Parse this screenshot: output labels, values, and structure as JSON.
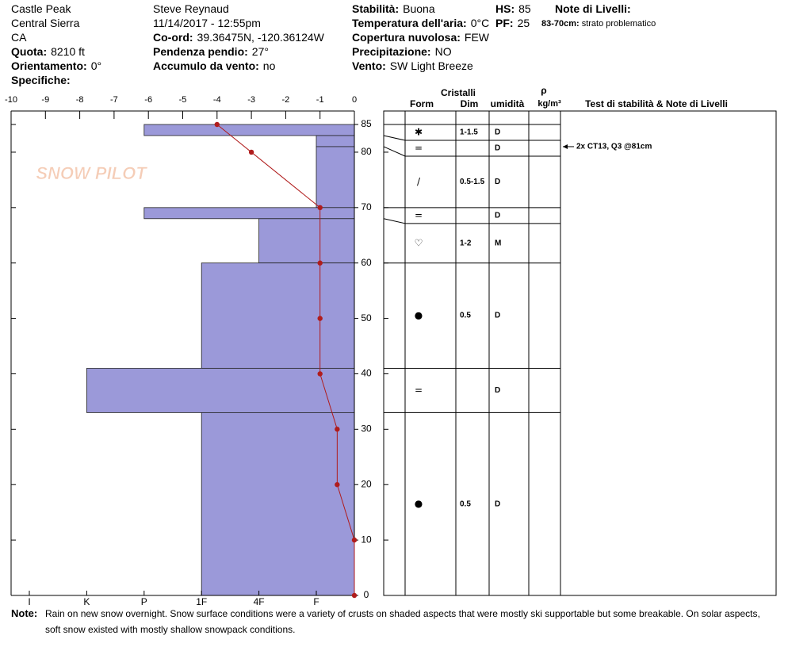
{
  "header": {
    "columns": [
      [
        {
          "text": "Castle Peak"
        },
        {
          "text": "Central Sierra"
        },
        {
          "text": "CA"
        },
        {
          "label": "Quota:",
          "value": "8210 ft"
        },
        {
          "label": "Orientamento:",
          "value": "0°"
        },
        {
          "label": "Specifiche:"
        }
      ],
      [
        {
          "text": "Steve Reynaud"
        },
        {
          "text": "11/14/2017 - 12:55pm"
        },
        {
          "label": "Co-ord:",
          "value": "39.36475N, -120.36124W"
        },
        {
          "label": "Pendenza pendio:",
          "value": "27°"
        },
        {
          "label": "Accumulo da vento:",
          "value": "no"
        }
      ],
      [
        {
          "label": "Stabilità:",
          "value": "Buona"
        },
        {
          "label": "Temperatura dell'aria:",
          "value": "0°C"
        },
        {
          "label": "Copertura nuvolosa:",
          "value": "FEW"
        },
        {
          "label": "Precipitazione:",
          "value": "NO"
        },
        {
          "label": "Vento:",
          "value": "SW Light Breeze"
        }
      ],
      [
        {
          "label": "HS:",
          "value": "85"
        },
        {
          "label": "PF:",
          "value": "25"
        }
      ],
      [
        {
          "label": "Note di Livelli:"
        },
        {
          "label": "83-70cm:",
          "value": "strato problematico"
        }
      ]
    ]
  },
  "chart_data": {
    "type": "snowpit",
    "watermark": "SNOW PILOT",
    "xlim": [
      -10,
      0
    ],
    "xticks": [
      -10,
      -9,
      -8,
      -7,
      -6,
      -5,
      -4,
      -3,
      -2,
      -1,
      0
    ],
    "ylim": [
      0,
      85
    ],
    "yticks": [
      0,
      10,
      20,
      30,
      40,
      50,
      60,
      70,
      80,
      85
    ],
    "hardness_ticks": [
      "I",
      "K",
      "P",
      "1F",
      "4F",
      "F"
    ],
    "color": "#9b99d9",
    "line_color": "#b01c1c",
    "temperature": {
      "depth": [
        85,
        80,
        70,
        60,
        50,
        40,
        30,
        20,
        10,
        0
      ],
      "values": [
        -4,
        -3,
        -1,
        -1,
        -1,
        -1,
        -0.5,
        -0.5,
        0,
        0
      ]
    },
    "layers": [
      {
        "top": 85,
        "bottom": 83,
        "hardness": "P",
        "form": "✱",
        "size": "1-1.5",
        "moisture": "D"
      },
      {
        "top": 83,
        "bottom": 81,
        "hardness": "F",
        "form": "=",
        "moisture": "D"
      },
      {
        "top": 81,
        "bottom": 70,
        "hardness": "F",
        "form": "/",
        "size": "0.5-1.5",
        "moisture": "D"
      },
      {
        "top": 70,
        "bottom": 68,
        "hardness": "P",
        "form": "=",
        "moisture": "D"
      },
      {
        "top": 68,
        "bottom": 60,
        "hardness": "4F",
        "form": "♡",
        "size": "1-2",
        "moisture": "M"
      },
      {
        "top": 60,
        "bottom": 41,
        "hardness": "1F",
        "form": "●",
        "size": "0.5",
        "moisture": "D"
      },
      {
        "top": 41,
        "bottom": 33,
        "hardness": "K",
        "form": "=",
        "moisture": "D"
      },
      {
        "top": 33,
        "bottom": 0,
        "hardness": "1F",
        "form": "●",
        "size": "0.5",
        "moisture": "D"
      }
    ],
    "columns": {
      "crystals": "Cristalli",
      "form": "Form",
      "size": "Dim",
      "moisture": "umidità",
      "density": "ρ",
      "density_unit": "kg/m³",
      "tests": "Test di stabilità & Note di Livelli"
    },
    "tests": [
      {
        "text": "2x CT13, Q3 @81cm",
        "depth": 81
      }
    ]
  },
  "note": {
    "label": "Note:",
    "text": "Rain on new snow overnight.  Snow surface conditions were a variety of crusts on shaded aspects that were mostly ski supportable but some breakable.  On solar aspects, soft snow existed with mostly shallow snowpack conditions."
  }
}
